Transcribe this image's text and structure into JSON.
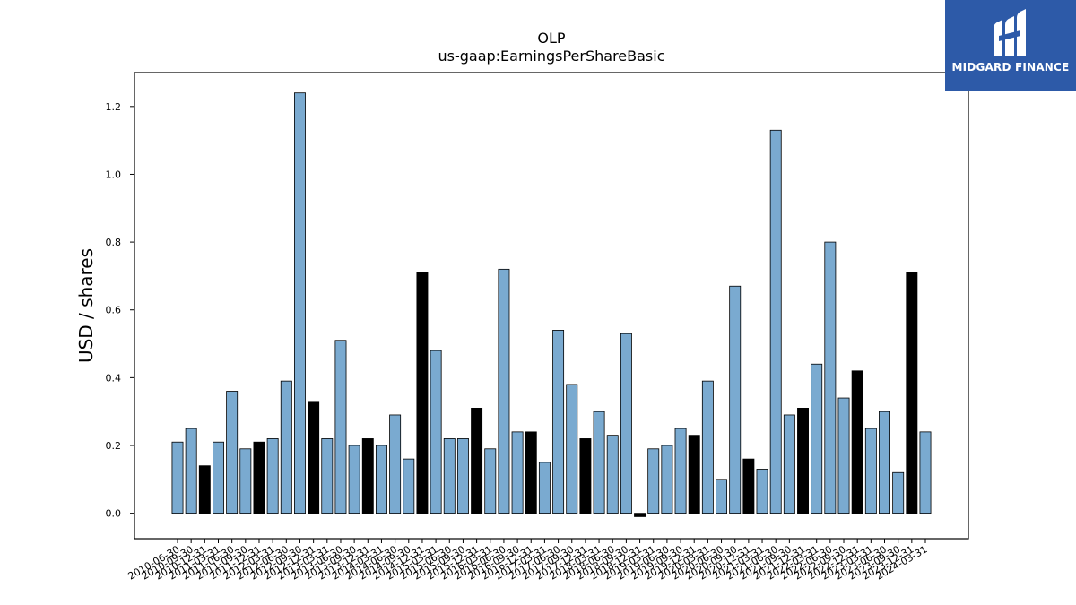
{
  "brand": {
    "name": "MIDGARD FINANCE"
  },
  "chart_data": {
    "type": "bar",
    "title": "OLP",
    "subtitle": "us-gaap:EarningsPerShareBasic",
    "xlabel": "",
    "ylabel": "USD / shares",
    "ylim": [
      -0.075,
      1.3
    ],
    "yticks": [
      0.0,
      0.2,
      0.4,
      0.6,
      0.8,
      1.0,
      1.2
    ],
    "grid": false,
    "colors": {
      "default": "#7aaad0",
      "highlight": "#000000",
      "edge": "#000000"
    },
    "categories": [
      "2010-06-30",
      "2010-09-30",
      "2010-12-31",
      "2011-03-31",
      "2011-06-30",
      "2011-09-30",
      "2011-12-31",
      "2012-03-31",
      "2012-06-30",
      "2012-09-30",
      "2012-12-31",
      "2013-03-31",
      "2013-06-30",
      "2013-09-30",
      "2013-12-31",
      "2014-03-31",
      "2014-06-30",
      "2014-09-30",
      "2014-12-31",
      "2015-03-31",
      "2015-06-30",
      "2015-09-30",
      "2015-12-31",
      "2016-03-31",
      "2016-06-30",
      "2016-09-30",
      "2016-12-31",
      "2017-03-31",
      "2017-06-30",
      "2017-09-30",
      "2017-12-31",
      "2018-03-31",
      "2018-06-30",
      "2018-09-30",
      "2018-12-31",
      "2019-03-31",
      "2019-06-30",
      "2019-09-30",
      "2019-12-31",
      "2020-03-31",
      "2020-06-30",
      "2020-09-30",
      "2020-12-31",
      "2021-03-31",
      "2021-06-30",
      "2021-09-30",
      "2021-12-31",
      "2022-03-31",
      "2022-06-30",
      "2022-09-30",
      "2022-12-31",
      "2023-03-31",
      "2023-06-30",
      "2023-09-30",
      "2023-12-31",
      "2024-03-31"
    ],
    "values": [
      0.21,
      0.25,
      0.14,
      0.21,
      0.36,
      0.19,
      0.21,
      0.22,
      0.39,
      1.24,
      0.33,
      0.22,
      0.51,
      0.2,
      0.22,
      0.2,
      0.29,
      0.16,
      0.71,
      0.48,
      0.22,
      0.22,
      0.31,
      0.19,
      0.72,
      0.24,
      0.24,
      0.15,
      0.54,
      0.38,
      0.22,
      0.3,
      0.23,
      0.53,
      -0.01,
      0.19,
      0.2,
      0.25,
      0.23,
      0.39,
      0.1,
      0.67,
      0.16,
      0.13,
      1.13,
      0.29,
      0.31,
      0.44,
      0.8,
      0.34,
      0.42,
      0.25,
      0.3,
      0.12,
      0.71,
      0.24
    ],
    "highlight": [
      false,
      false,
      true,
      false,
      false,
      false,
      true,
      false,
      false,
      false,
      true,
      false,
      false,
      false,
      true,
      false,
      false,
      false,
      true,
      false,
      false,
      false,
      true,
      false,
      false,
      false,
      true,
      false,
      false,
      false,
      true,
      false,
      false,
      false,
      true,
      false,
      false,
      false,
      true,
      false,
      false,
      false,
      true,
      false,
      false,
      false,
      true,
      false,
      false,
      false,
      true,
      false,
      false,
      false,
      true,
      false
    ]
  }
}
